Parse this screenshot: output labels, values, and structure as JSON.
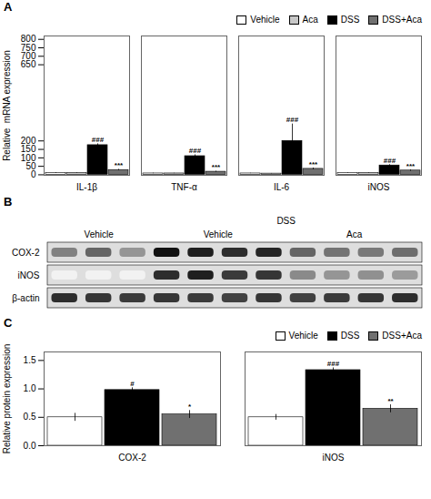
{
  "chart_data": [
    {
      "type": "bar",
      "title": "A",
      "categories": [
        "IL-1β",
        "TNF-α",
        "IL-6",
        "iNOS"
      ],
      "series": [
        {
          "name": "Vehicle",
          "color": "white",
          "values": [
            10,
            8,
            8,
            10
          ],
          "errors": [
            2,
            1.5,
            1,
            1.5
          ]
        },
        {
          "name": "Aca",
          "color": "#c8c8c8",
          "values": [
            10,
            8,
            7,
            10
          ],
          "errors": [
            1.5,
            1,
            1,
            1.5
          ]
        },
        {
          "name": "DSS",
          "color": "black",
          "values": [
            175,
            110,
            200,
            55
          ],
          "errors": [
            8,
            8,
            100,
            5
          ],
          "annotations": [
            "###",
            "###",
            "###",
            "###"
          ]
        },
        {
          "name": "DSS+Aca",
          "color": "#707070",
          "values": [
            28,
            18,
            35,
            25
          ],
          "errors": [
            4,
            3,
            5,
            4
          ],
          "annotations": [
            "***",
            "***",
            "***",
            "***"
          ]
        }
      ],
      "ylabel": "Relative  mRNA expression",
      "ylim": [
        -3,
        820
      ],
      "yticks": [
        0,
        50,
        100,
        150,
        200,
        650,
        700,
        750,
        800
      ],
      "legend": "top"
    },
    {
      "type": "heatmap",
      "title": "B",
      "categories": [
        null,
        null,
        null,
        null,
        null,
        null,
        null,
        null,
        null,
        null,
        null
      ],
      "series": [
        {
          "name": "COX-2",
          "values": [
            0.45,
            0.55,
            0.38,
            0.85,
            0.8,
            0.75,
            0.78,
            0.55,
            0.5,
            0.48,
            0.52
          ]
        },
        {
          "name": "iNOS",
          "values": [
            0.05,
            0.05,
            0.05,
            0.75,
            0.8,
            0.7,
            0.72,
            0.42,
            0.38,
            0.4,
            0.36
          ]
        },
        {
          "name": "β-actin",
          "values": [
            0.75,
            0.72,
            0.7,
            0.72,
            0.7,
            0.68,
            0.72,
            0.68,
            0.7,
            0.72,
            0.75
          ]
        }
      ],
      "column_groups": [
        {
          "label": "Vehicle",
          "lanes": 3
        },
        {
          "label": "DSS",
          "lanes": 8,
          "subgroups": [
            {
              "label": "Vehicle",
              "lanes": 4
            },
            {
              "label": "Aca",
              "lanes": 4
            }
          ]
        }
      ],
      "tick_labels": "y"
    },
    {
      "type": "bar",
      "title": "C",
      "categories": [
        "COX-2",
        "iNOS"
      ],
      "series": [
        {
          "name": "Vehicle",
          "color": "white",
          "values": [
            0.5,
            0.5
          ],
          "errors": [
            0.07,
            0.05
          ]
        },
        {
          "name": "DSS",
          "color": "black",
          "values": [
            0.98,
            1.33
          ],
          "errors": [
            0.04,
            0.04
          ],
          "annotations": [
            "#",
            "###"
          ]
        },
        {
          "name": "DSS+Aca",
          "color": "#707070",
          "values": [
            0.55,
            0.65
          ],
          "errors": [
            0.07,
            0.07
          ],
          "annotations": [
            "*",
            "**"
          ]
        }
      ],
      "ylabel": "Relative protein expression",
      "ylim": [
        0,
        1.65
      ],
      "yticks": [
        {
          "value": 0,
          "label": "0.0"
        },
        0.5,
        {
          "value": 1,
          "label": "1.0"
        },
        1.5
      ],
      "legend": "top"
    }
  ]
}
